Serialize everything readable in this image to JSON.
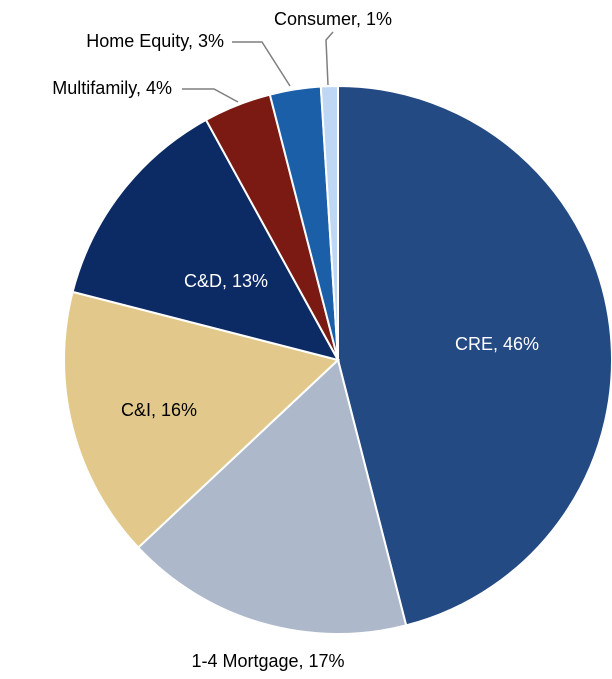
{
  "chart_data": {
    "type": "pie",
    "values": [
      46,
      17,
      16,
      13,
      4,
      3,
      1
    ],
    "value_labels": [
      "CRE, 46%",
      "1-4 Mortgage, 17%",
      "C&I, 16%",
      "C&D, 13%",
      "Multifamily, 4%",
      "Home Equity, 3%",
      "Consumer, 1%"
    ],
    "colors": [
      "#234a83",
      "#adb9cb",
      "#e2c98b",
      "#0c2a63",
      "#7b1a12",
      "#1a5fa8",
      "#bdd7f5"
    ]
  }
}
